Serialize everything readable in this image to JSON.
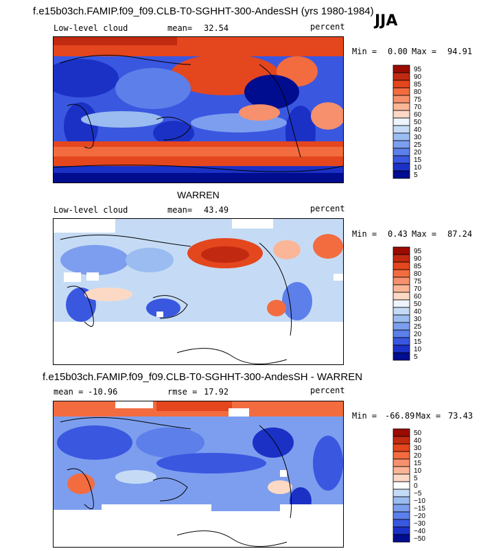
{
  "header": {
    "title": "f.e15b03ch.FAMIP.f09_f09.CLB-T0-SGHHT-300-AndesSH (yrs 1980-1984)",
    "season": "JJA"
  },
  "chart_data": [
    {
      "type": "heatmap",
      "title": "f.e15b03ch.FAMIP.f09_f09.CLB-T0-SGHHT-300-AndesSH (yrs 1980-1984)",
      "variable": "Low-level cloud",
      "mean_label": "mean=",
      "mean_value": "32.54",
      "units": "percent",
      "min_label": "Min =",
      "min_value": "0.00",
      "max_label": "Max =",
      "max_value": "94.91",
      "colorbar_levels": [
        "95",
        "90",
        "85",
        "80",
        "75",
        "70",
        "60",
        "50",
        "40",
        "30",
        "25",
        "20",
        "15",
        "10",
        "5"
      ],
      "colorbar_colors": [
        "#9a0b00",
        "#c12a10",
        "#e4461e",
        "#f26c40",
        "#f7906c",
        "#fbb597",
        "#fcd9c5",
        "#eef4fb",
        "#c5dbf5",
        "#9bbcf0",
        "#7d9eee",
        "#5c7fea",
        "#3a57e0",
        "#1b31c6",
        "#000d8f"
      ]
    },
    {
      "type": "heatmap",
      "title": "WARREN",
      "variable": "Low-level cloud",
      "mean_label": "mean=",
      "mean_value": "43.49",
      "units": "percent",
      "min_label": "Min =",
      "min_value": "0.43",
      "max_label": "Max =",
      "max_value": "87.24",
      "colorbar_levels": [
        "95",
        "90",
        "85",
        "80",
        "75",
        "70",
        "60",
        "50",
        "40",
        "30",
        "25",
        "20",
        "15",
        "10",
        "5"
      ],
      "colorbar_colors": [
        "#9a0b00",
        "#c12a10",
        "#e4461e",
        "#f26c40",
        "#f7906c",
        "#fbb597",
        "#fcd9c5",
        "#eef4fb",
        "#c5dbf5",
        "#9bbcf0",
        "#7d9eee",
        "#5c7fea",
        "#3a57e0",
        "#1b31c6",
        "#000d8f"
      ]
    },
    {
      "type": "heatmap",
      "title": "f.e15b03ch.FAMIP.f09_f09.CLB-T0-SGHHT-300-AndesSH - WARREN",
      "mean_label": "mean =",
      "mean_value": "-10.96",
      "rmse_label": "rmse =",
      "rmse_value": "17.92",
      "units": "percent",
      "min_label": "Min =",
      "min_value": "-66.89",
      "max_label": "Max =",
      "max_value": "73.43",
      "colorbar_levels": [
        "50",
        "40",
        "30",
        "20",
        "15",
        "10",
        "5",
        "0",
        "−5",
        "−10",
        "−15",
        "−20",
        "−30",
        "−40",
        "−50"
      ],
      "colorbar_colors": [
        "#9a0b00",
        "#c12a10",
        "#e4461e",
        "#f26c40",
        "#f7906c",
        "#fbb597",
        "#fcd9c5",
        "#ffffff",
        "#c5dbf5",
        "#9bbcf0",
        "#7d9eee",
        "#5c7fea",
        "#3a57e0",
        "#1b31c6",
        "#000d8f"
      ]
    }
  ]
}
